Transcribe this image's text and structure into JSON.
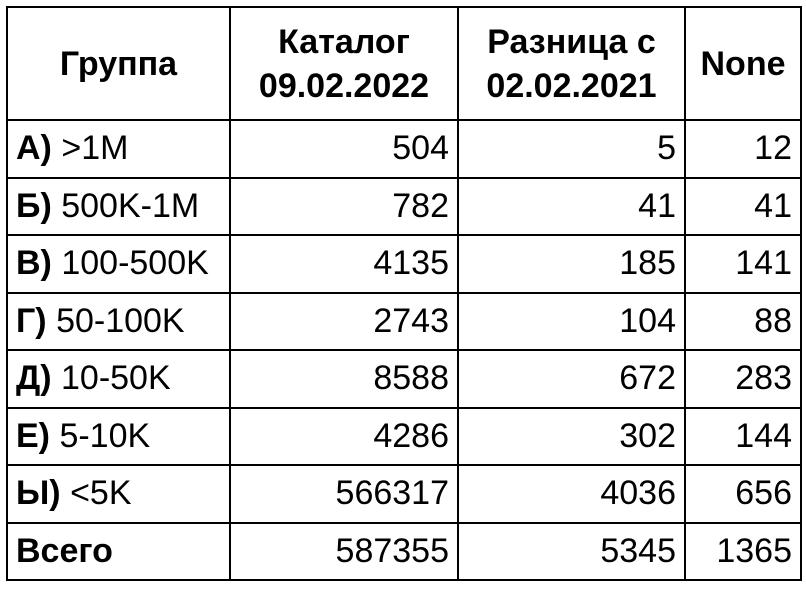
{
  "table": {
    "header": [
      [
        "Группа"
      ],
      [
        "Каталог",
        "09.02.2022"
      ],
      [
        "Разница с",
        "02.02.2021"
      ],
      [
        "None"
      ]
    ],
    "rows": [
      [
        {
          "group": "А)",
          "range": ">1M"
        },
        504,
        5,
        12
      ],
      [
        {
          "group": "Б)",
          "range": "500K-1M"
        },
        782,
        41,
        41
      ],
      [
        {
          "group": "В)",
          "range": "100-500K"
        },
        4135,
        185,
        141
      ],
      [
        {
          "group": "Г)",
          "range": "50-100K"
        },
        2743,
        104,
        88
      ],
      [
        {
          "group": "Д)",
          "range": "10-50K"
        },
        8588,
        672,
        283
      ],
      [
        {
          "group": "Е)",
          "range": "5-10K"
        },
        4286,
        302,
        144
      ],
      [
        {
          "group": "Ы)",
          "range": "<5K"
        },
        566317,
        4036,
        656
      ]
    ],
    "total": [
      "Всего",
      587355,
      5345,
      1365
    ]
  }
}
